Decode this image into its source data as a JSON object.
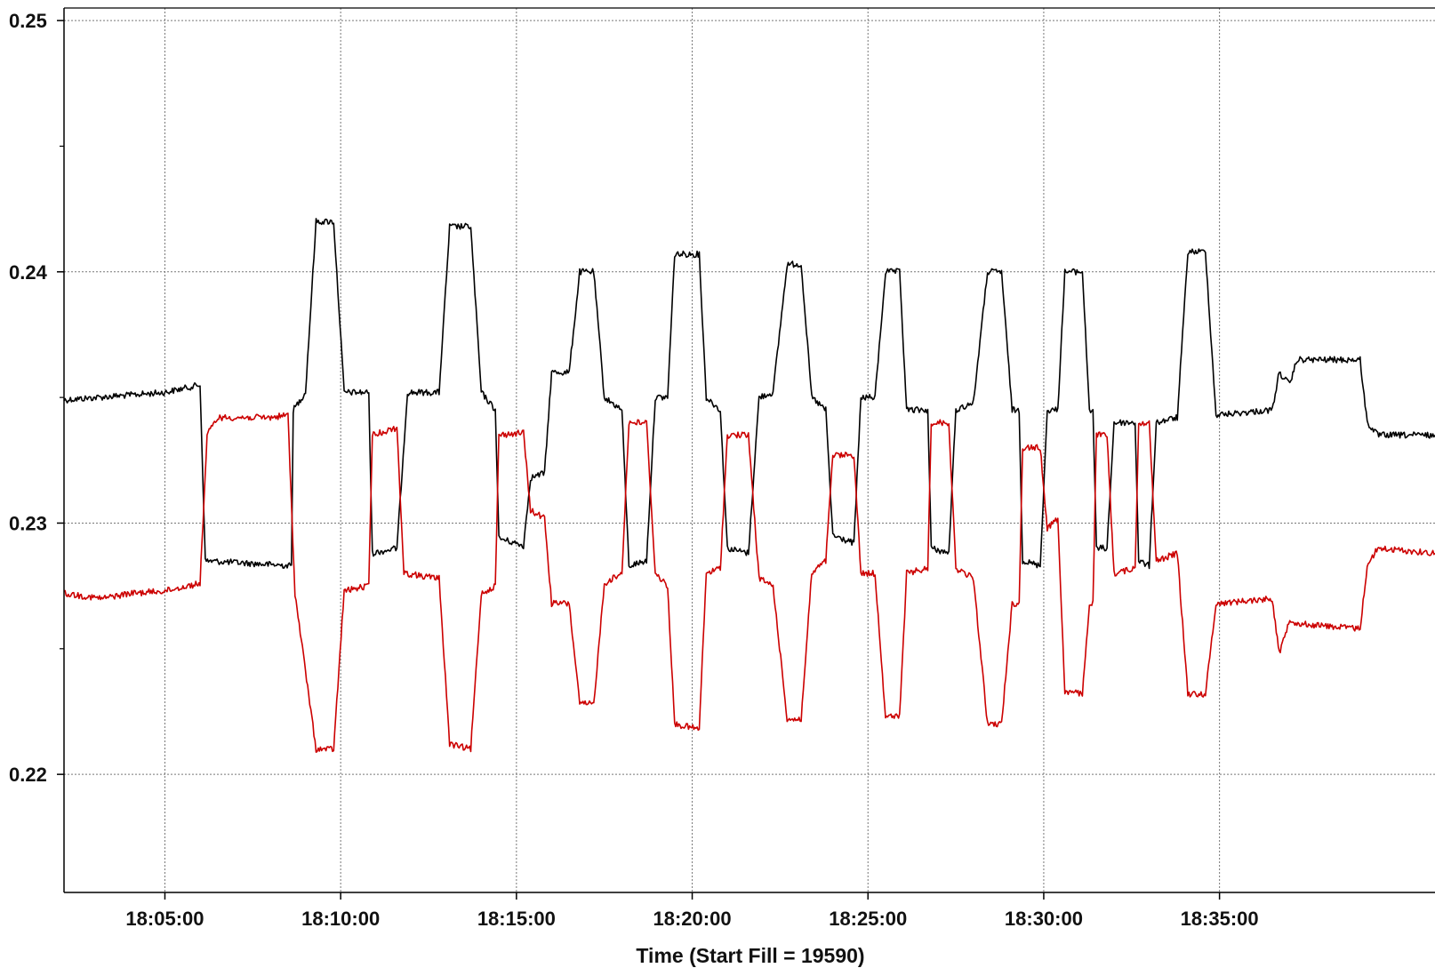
{
  "chart_data": {
    "type": "line",
    "title": "",
    "xlabel": "Time (Start Fill = 19590)",
    "ylabel": "",
    "xlim_minutes": [
      2.13,
      41.13
    ],
    "ylim": [
      0.2153,
      0.2505
    ],
    "grid": true,
    "legend": "none",
    "x_ticks": [
      {
        "label": "18:05:00",
        "minute": 5
      },
      {
        "label": "18:10:00",
        "minute": 10
      },
      {
        "label": "18:15:00",
        "minute": 15
      },
      {
        "label": "18:20:00",
        "minute": 20
      },
      {
        "label": "18:25:00",
        "minute": 25
      },
      {
        "label": "18:30:00",
        "minute": 30
      },
      {
        "label": "18:35:00",
        "minute": 35
      }
    ],
    "y_ticks": [
      {
        "label": "0.25",
        "value": 0.25
      },
      {
        "label": "0.24",
        "value": 0.24
      },
      {
        "label": "0.23",
        "value": 0.23
      },
      {
        "label": "0.22",
        "value": 0.22
      }
    ],
    "x_unit": "minutes after 18:00:00",
    "series": [
      {
        "color": "#000000",
        "points": [
          [
            2.13,
            0.2349
          ],
          [
            5.0,
            0.2352
          ],
          [
            6.0,
            0.2355
          ],
          [
            6.15,
            0.2285
          ],
          [
            8.6,
            0.2283
          ],
          [
            8.65,
            0.2345
          ],
          [
            9.0,
            0.2352
          ],
          [
            9.3,
            0.242
          ],
          [
            9.8,
            0.242
          ],
          [
            10.1,
            0.2352
          ],
          [
            10.8,
            0.2352
          ],
          [
            10.9,
            0.2288
          ],
          [
            11.6,
            0.229
          ],
          [
            11.9,
            0.2352
          ],
          [
            12.8,
            0.2352
          ],
          [
            13.1,
            0.2418
          ],
          [
            13.7,
            0.2418
          ],
          [
            14.0,
            0.2352
          ],
          [
            14.4,
            0.2345
          ],
          [
            14.5,
            0.2294
          ],
          [
            15.2,
            0.2291
          ],
          [
            15.4,
            0.2318
          ],
          [
            15.8,
            0.232
          ],
          [
            16.0,
            0.236
          ],
          [
            16.5,
            0.236
          ],
          [
            16.8,
            0.24
          ],
          [
            17.2,
            0.24
          ],
          [
            17.5,
            0.235
          ],
          [
            18.0,
            0.2345
          ],
          [
            18.2,
            0.2283
          ],
          [
            18.7,
            0.2285
          ],
          [
            18.95,
            0.235
          ],
          [
            19.3,
            0.235
          ],
          [
            19.5,
            0.2407
          ],
          [
            20.2,
            0.2407
          ],
          [
            20.4,
            0.235
          ],
          [
            20.8,
            0.2345
          ],
          [
            21.0,
            0.229
          ],
          [
            21.6,
            0.2288
          ],
          [
            21.9,
            0.235
          ],
          [
            22.3,
            0.2352
          ],
          [
            22.7,
            0.2403
          ],
          [
            23.1,
            0.2403
          ],
          [
            23.4,
            0.235
          ],
          [
            23.8,
            0.2345
          ],
          [
            24.0,
            0.2295
          ],
          [
            24.6,
            0.2292
          ],
          [
            24.8,
            0.235
          ],
          [
            25.2,
            0.235
          ],
          [
            25.5,
            0.24
          ],
          [
            25.9,
            0.24
          ],
          [
            26.1,
            0.2345
          ],
          [
            26.7,
            0.2345
          ],
          [
            26.8,
            0.229
          ],
          [
            27.3,
            0.2288
          ],
          [
            27.5,
            0.2345
          ],
          [
            28.0,
            0.2348
          ],
          [
            28.4,
            0.24
          ],
          [
            28.8,
            0.24
          ],
          [
            29.1,
            0.2345
          ],
          [
            29.3,
            0.2345
          ],
          [
            29.4,
            0.2285
          ],
          [
            29.9,
            0.2283
          ],
          [
            30.1,
            0.2345
          ],
          [
            30.4,
            0.2345
          ],
          [
            30.6,
            0.24
          ],
          [
            31.1,
            0.24
          ],
          [
            31.3,
            0.2345
          ],
          [
            31.4,
            0.2345
          ],
          [
            31.5,
            0.229
          ],
          [
            31.8,
            0.229
          ],
          [
            32.0,
            0.234
          ],
          [
            32.6,
            0.234
          ],
          [
            32.7,
            0.2285
          ],
          [
            33.0,
            0.2283
          ],
          [
            33.2,
            0.234
          ],
          [
            33.8,
            0.2342
          ],
          [
            34.1,
            0.2408
          ],
          [
            34.6,
            0.2408
          ],
          [
            34.9,
            0.2343
          ],
          [
            36.5,
            0.2345
          ],
          [
            36.7,
            0.236
          ],
          [
            37.0,
            0.2355
          ],
          [
            37.2,
            0.2365
          ],
          [
            39.0,
            0.2365
          ],
          [
            39.2,
            0.234
          ],
          [
            39.5,
            0.2335
          ],
          [
            41.13,
            0.2335
          ]
        ]
      },
      {
        "color": "#cc0000",
        "points": [
          [
            2.13,
            0.2272
          ],
          [
            3.2,
            0.227
          ],
          [
            4.0,
            0.2272
          ],
          [
            5.0,
            0.2273
          ],
          [
            6.0,
            0.2276
          ],
          [
            6.2,
            0.2335
          ],
          [
            6.5,
            0.2342
          ],
          [
            8.0,
            0.2342
          ],
          [
            8.5,
            0.2343
          ],
          [
            8.7,
            0.2272
          ],
          [
            9.3,
            0.221
          ],
          [
            9.8,
            0.221
          ],
          [
            10.1,
            0.2273
          ],
          [
            10.8,
            0.2275
          ],
          [
            10.9,
            0.2335
          ],
          [
            11.6,
            0.2338
          ],
          [
            11.8,
            0.228
          ],
          [
            12.8,
            0.2278
          ],
          [
            13.1,
            0.2212
          ],
          [
            13.7,
            0.221
          ],
          [
            14.0,
            0.2272
          ],
          [
            14.4,
            0.2275
          ],
          [
            14.5,
            0.2335
          ],
          [
            15.2,
            0.2336
          ],
          [
            15.4,
            0.2305
          ],
          [
            15.8,
            0.2302
          ],
          [
            16.0,
            0.2268
          ],
          [
            16.5,
            0.2268
          ],
          [
            16.8,
            0.2228
          ],
          [
            17.2,
            0.2228
          ],
          [
            17.5,
            0.2276
          ],
          [
            18.0,
            0.228
          ],
          [
            18.2,
            0.234
          ],
          [
            18.7,
            0.234
          ],
          [
            18.95,
            0.228
          ],
          [
            19.3,
            0.2275
          ],
          [
            19.5,
            0.222
          ],
          [
            20.2,
            0.2218
          ],
          [
            20.4,
            0.228
          ],
          [
            20.8,
            0.2282
          ],
          [
            21.0,
            0.2335
          ],
          [
            21.6,
            0.2335
          ],
          [
            21.9,
            0.2278
          ],
          [
            22.3,
            0.2275
          ],
          [
            22.7,
            0.2222
          ],
          [
            23.1,
            0.2222
          ],
          [
            23.4,
            0.228
          ],
          [
            23.8,
            0.2285
          ],
          [
            24.0,
            0.2327
          ],
          [
            24.6,
            0.2327
          ],
          [
            24.8,
            0.228
          ],
          [
            25.2,
            0.228
          ],
          [
            25.5,
            0.2223
          ],
          [
            25.9,
            0.2223
          ],
          [
            26.1,
            0.228
          ],
          [
            26.7,
            0.2282
          ],
          [
            26.8,
            0.234
          ],
          [
            27.3,
            0.234
          ],
          [
            27.5,
            0.2282
          ],
          [
            28.0,
            0.2278
          ],
          [
            28.4,
            0.222
          ],
          [
            28.8,
            0.222
          ],
          [
            29.1,
            0.2268
          ],
          [
            29.3,
            0.2268
          ],
          [
            29.4,
            0.233
          ],
          [
            29.9,
            0.233
          ],
          [
            30.1,
            0.2298
          ],
          [
            30.4,
            0.2302
          ],
          [
            30.6,
            0.2233
          ],
          [
            31.1,
            0.2232
          ],
          [
            31.3,
            0.2268
          ],
          [
            31.4,
            0.2268
          ],
          [
            31.5,
            0.2335
          ],
          [
            31.8,
            0.2335
          ],
          [
            32.0,
            0.228
          ],
          [
            32.6,
            0.2282
          ],
          [
            32.7,
            0.234
          ],
          [
            33.0,
            0.234
          ],
          [
            33.2,
            0.2285
          ],
          [
            33.8,
            0.2288
          ],
          [
            34.1,
            0.2232
          ],
          [
            34.6,
            0.2232
          ],
          [
            34.9,
            0.2268
          ],
          [
            36.5,
            0.227
          ],
          [
            36.7,
            0.2248
          ],
          [
            37.0,
            0.2262
          ],
          [
            37.2,
            0.226
          ],
          [
            39.0,
            0.2258
          ],
          [
            39.2,
            0.2283
          ],
          [
            39.5,
            0.229
          ],
          [
            41.13,
            0.2288
          ]
        ]
      }
    ]
  }
}
